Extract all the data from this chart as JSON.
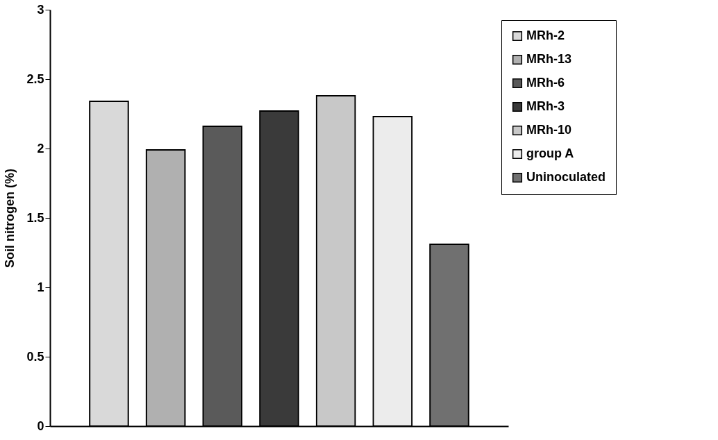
{
  "chart_data": {
    "type": "bar",
    "ylabel": "Soil nitrogen (%)",
    "categories": [
      null
    ],
    "series": [
      {
        "name": "MRh-2",
        "color": "#d9d9d9",
        "values": [
          2.34
        ]
      },
      {
        "name": "MRh-13",
        "color": "#b0b0b0",
        "values": [
          1.99
        ]
      },
      {
        "name": "MRh-6",
        "color": "#5a5a5a",
        "values": [
          2.16
        ]
      },
      {
        "name": "MRh-3",
        "color": "#3a3a3a",
        "values": [
          2.27
        ]
      },
      {
        "name": "MRh-10",
        "color": "#c8c8c8",
        "values": [
          2.38
        ]
      },
      {
        "name": "group A",
        "color": "#ececec",
        "values": [
          2.23
        ]
      },
      {
        "name": "Uninoculated",
        "color": "#707070",
        "values": [
          1.31
        ]
      }
    ],
    "ylim": [
      0,
      3
    ],
    "yticks": [
      0,
      0.5,
      1,
      1.5,
      2,
      2.5,
      3
    ],
    "grid": false,
    "legend": "top right"
  }
}
